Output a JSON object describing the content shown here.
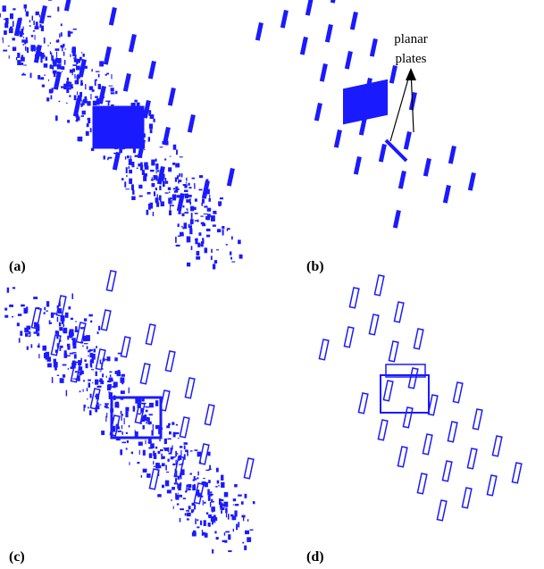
{
  "panels": [
    {
      "label": "(a)"
    },
    {
      "label": "(b)"
    },
    {
      "label": "(c)"
    },
    {
      "label": "(d)"
    }
  ],
  "annotation": {
    "line1": "planar",
    "line2": "plates"
  }
}
